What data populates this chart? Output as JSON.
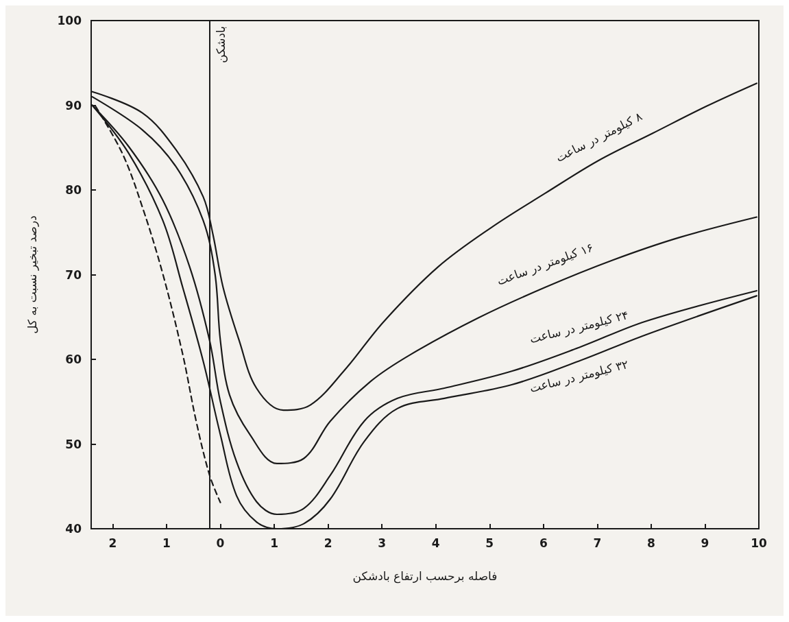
{
  "chart_data": {
    "type": "line",
    "xlabel": "فاصله برحسب ارتفاع بادشکن",
    "ylabel": "درصد تبخیر نسبت به کل",
    "xlim": [
      -2.4,
      10
    ],
    "ylim": [
      40,
      100
    ],
    "xticks": [
      {
        "value": -2,
        "label": "2"
      },
      {
        "value": -1,
        "label": "1"
      },
      0,
      1,
      2,
      3,
      4,
      5,
      6,
      7,
      8,
      9,
      10
    ],
    "yticks": [
      40,
      50,
      60,
      70,
      80,
      90,
      100
    ],
    "grid": false,
    "legend": false,
    "marker": "none",
    "ref_lines": [
      {
        "axis": "x",
        "value": -0.2,
        "label": "بادشکن",
        "color": "#1a1a1a"
      }
    ],
    "series": [
      {
        "name": "۸ کیلومتر در ساعت",
        "color": "#1a1a1a",
        "line_style": "solid",
        "x": [
          -2.38,
          -1.45,
          -0.82,
          -0.32,
          -0.14,
          0.05,
          0.35,
          0.67,
          1.17,
          1.67,
          2.29,
          3.04,
          4.04,
          5.04,
          6.03,
          7.03,
          8.03,
          9.03,
          9.96
        ],
        "values": [
          91.6,
          89.1,
          84.7,
          79.2,
          74.8,
          68.5,
          62.2,
          56.6,
          54.0,
          54.6,
          58.6,
          64.5,
          70.9,
          75.6,
          79.6,
          83.5,
          86.7,
          89.9,
          92.6
        ]
      },
      {
        "name": "۱۶ کیلومتر در ساعت",
        "color": "#1a1a1a",
        "line_style": "solid",
        "x": [
          -2.38,
          -1.45,
          -0.82,
          -0.32,
          -0.1,
          0,
          0.17,
          0.55,
          1.05,
          1.55,
          2.04,
          2.79,
          3.54,
          4.79,
          6.03,
          7.28,
          8.53,
          9.96
        ],
        "values": [
          91.0,
          87.1,
          82.7,
          76.4,
          70.1,
          62.2,
          55.8,
          51.1,
          47.7,
          48.3,
          52.7,
          57.4,
          60.6,
          64.9,
          68.5,
          71.7,
          74.4,
          76.8
        ]
      },
      {
        "name": "۲۴ کیلومتر در ساعت",
        "color": "#1a1a1a",
        "line_style": "solid",
        "x": [
          -2.38,
          -1.7,
          -1.07,
          -0.57,
          -0.2,
          0,
          0.3,
          0.67,
          1.05,
          1.55,
          2.04,
          2.67,
          3.29,
          4.16,
          5.41,
          6.66,
          7.9,
          9.96
        ],
        "values": [
          90.0,
          85.1,
          78.8,
          70.9,
          62.2,
          55.0,
          47.9,
          43.2,
          41.7,
          42.4,
          46.3,
          52.7,
          55.4,
          56.6,
          58.6,
          61.4,
          64.5,
          68.1
        ]
      },
      {
        "name": "۳۲ کیلومتر در ساعت",
        "color": "#1a1a1a",
        "line_style": "solid",
        "x": [
          -2.38,
          -1.7,
          -1.07,
          -0.7,
          -0.32,
          0,
          0.3,
          0.67,
          1.05,
          1.55,
          2.04,
          2.67,
          3.29,
          4.16,
          5.41,
          6.66,
          7.9,
          9.96
        ],
        "values": [
          90.0,
          84.3,
          76.4,
          68.5,
          59.8,
          51.1,
          43.9,
          40.8,
          40.0,
          40.6,
          43.5,
          50.3,
          54.2,
          55.4,
          57.0,
          59.8,
          62.9,
          67.5
        ]
      },
      {
        "color": "#1a1a1a",
        "line_style": "dashed",
        "x": [
          -2.32,
          -1.82,
          -1.45,
          -1.07,
          -0.7,
          -0.45,
          -0.2,
          0
        ],
        "values": [
          89.9,
          84.3,
          78.0,
          70.1,
          60.6,
          52.7,
          46.3,
          43.1
        ]
      }
    ]
  }
}
